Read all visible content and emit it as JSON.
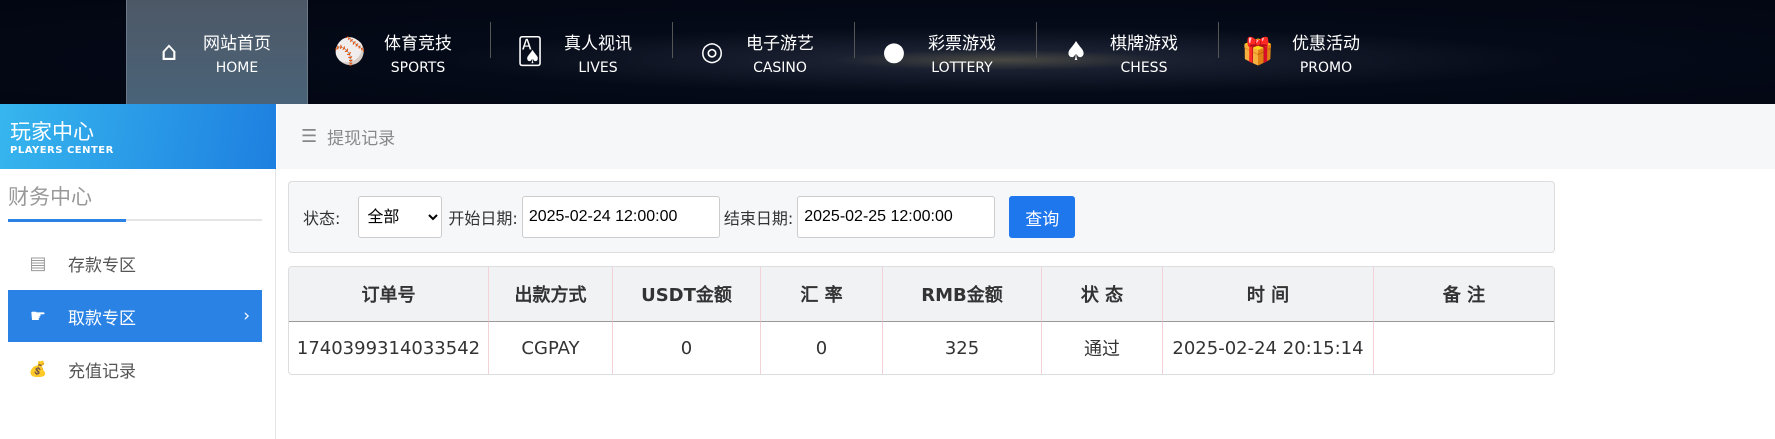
{
  "nav": [
    {
      "cn": "网站首页",
      "en": "HOME",
      "icon": "home-icon",
      "glyph": "⌂",
      "active": true
    },
    {
      "cn": "体育竞技",
      "en": "SPORTS",
      "icon": "ball-icon",
      "glyph": "⚾"
    },
    {
      "cn": "真人视讯",
      "en": "LIVES",
      "icon": "cards-icon",
      "glyph": "🂡"
    },
    {
      "cn": "电子游艺",
      "en": "CASINO",
      "icon": "roulette-icon",
      "glyph": "◎"
    },
    {
      "cn": "彩票游戏",
      "en": "LOTTERY",
      "icon": "lottery-balls-icon",
      "glyph": "●"
    },
    {
      "cn": "棋牌游戏",
      "en": "CHESS",
      "icon": "spade-icon",
      "glyph": "♠"
    },
    {
      "cn": "优惠活动",
      "en": "PROMO",
      "icon": "gift-icon",
      "glyph": "🎁"
    }
  ],
  "logo": {
    "cn": "玩家中心",
    "en": "PLAYERS CENTER"
  },
  "sidebar": {
    "title": "财务中心",
    "items": [
      {
        "label": "存款专区",
        "icon": "card-icon",
        "glyph": "▤"
      },
      {
        "label": "取款专区",
        "icon": "hand-money-icon",
        "glyph": "☛",
        "active": true,
        "chevron": "›"
      },
      {
        "label": "充值记录",
        "icon": "money-bag-icon",
        "glyph": "💰"
      }
    ]
  },
  "breadcrumb": {
    "icon": "☰",
    "label": "提现记录"
  },
  "filter": {
    "status_label": "状态:",
    "status_value": "全部",
    "start_label": "开始日期:",
    "start_value": "2025-02-24 12:00:00",
    "end_label": "结束日期:",
    "end_value": "2025-02-25 12:00:00",
    "query_label": "查询"
  },
  "table": {
    "headers": [
      "订单号",
      "出款方式",
      "USDT金额",
      "汇 率",
      "RMB金额",
      "状 态",
      "时 间",
      "备 注"
    ],
    "rows": [
      [
        "1740399314033542",
        "CGPAY",
        "0",
        "0",
        "325",
        "通过",
        "2025-02-24 20:15:14",
        ""
      ]
    ]
  }
}
